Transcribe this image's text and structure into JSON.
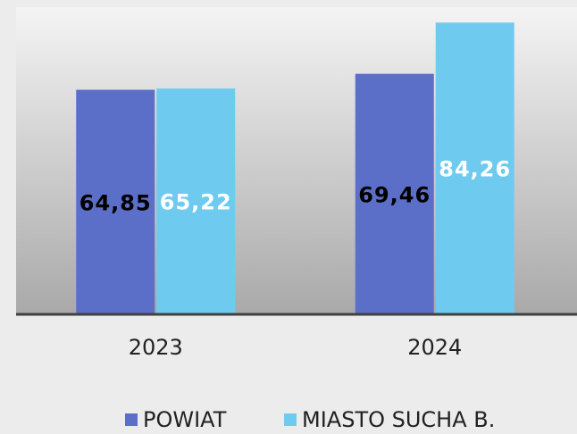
{
  "chart_data": {
    "type": "bar",
    "categories": [
      "2023",
      "2024"
    ],
    "series": [
      {
        "name": "POWIAT",
        "color": "#5b6fc9",
        "values": [
          64.85,
          69.46
        ],
        "value_labels": [
          "64,85",
          "69,46"
        ]
      },
      {
        "name": "MIASTO SUCHA B.",
        "color": "#6ecbef",
        "values": [
          65.22,
          84.26
        ],
        "value_labels": [
          "65,22",
          "84,26"
        ]
      }
    ],
    "ylim": [
      0,
      90
    ],
    "legend": "bottom"
  }
}
